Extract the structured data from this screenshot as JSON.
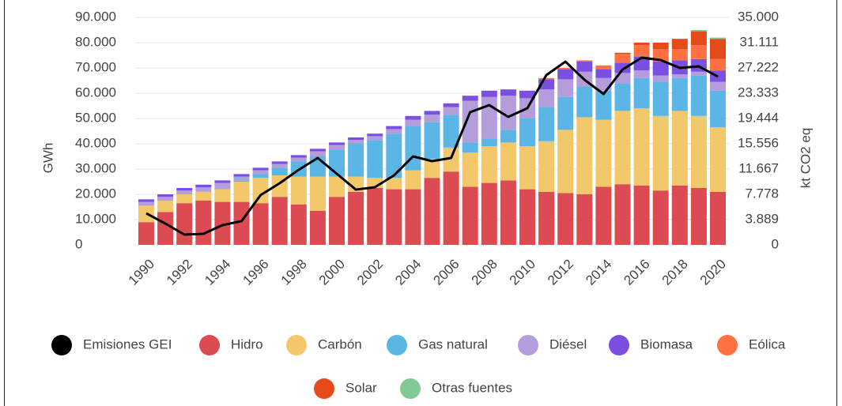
{
  "chart_data": {
    "type": "bar",
    "categories": [
      "1990",
      null,
      "1992",
      null,
      "1994",
      null,
      "1996",
      null,
      "1998",
      null,
      "2000",
      null,
      "2002",
      null,
      "2004",
      null,
      "2006",
      null,
      "2008",
      null,
      "2010",
      null,
      "2012",
      null,
      "2014",
      null,
      "2016",
      null,
      "2018",
      null,
      "2020"
    ],
    "ylabel": "GWh",
    "y2label": "kt CO2 eq",
    "ylim": [
      0,
      90000
    ],
    "yticks": [
      0,
      {
        "value": 10000,
        "label": "10.000"
      },
      {
        "value": 20000,
        "label": "20.000"
      },
      {
        "value": 30000,
        "label": "30.000"
      },
      {
        "value": 40000,
        "label": "40.000"
      },
      {
        "value": 50000,
        "label": "50.000"
      },
      {
        "value": 60000,
        "label": "60.000"
      },
      {
        "value": 70000,
        "label": "70.000"
      },
      {
        "value": 80000,
        "label": "80.000"
      },
      {
        "value": 90000,
        "label": "90.000"
      }
    ],
    "y2lim": [
      0,
      35000
    ],
    "y2ticks": [
      0,
      {
        "value": 3889,
        "label": "3.889"
      },
      {
        "value": 7778,
        "label": "7.778"
      },
      {
        "value": 11667,
        "label": "11.667"
      },
      {
        "value": 15556,
        "label": "15.556"
      },
      {
        "value": 19444,
        "label": "19.444"
      },
      {
        "value": 23333,
        "label": "23.333"
      },
      {
        "value": 27222,
        "label": "27.222"
      },
      {
        "value": 31111,
        "label": "31.111"
      },
      {
        "value": 35000,
        "label": "35.000"
      }
    ],
    "grid": true,
    "stacked": true,
    "legend": "bottom",
    "series": [
      {
        "name": "Emisiones GEI",
        "color": "#000000",
        "type": "line",
        "axis": "y2",
        "values": [
          4860,
          3280,
          1580,
          1700,
          3040,
          3650,
          7660,
          9480,
          11550,
          13370,
          10940,
          8500,
          8870,
          10690,
          13610,
          12880,
          13370,
          20420,
          21500,
          19690,
          21020,
          26130,
          28190,
          25400,
          23210,
          26980,
          28800,
          28440,
          27220,
          27460,
          25890
        ]
      },
      {
        "name": "Hidro",
        "color": "#dc4b52",
        "values": [
          9000,
          13000,
          16500,
          17500,
          17000,
          17000,
          16500,
          19000,
          16000,
          13500,
          19000,
          21000,
          22500,
          22000,
          22000,
          26500,
          29000,
          23000,
          24500,
          25500,
          22000,
          21000,
          20500,
          20000,
          23000,
          24000,
          23500,
          21500,
          23500,
          22500,
          21000
        ]
      },
      {
        "name": "Carbón",
        "color": "#f2c86a",
        "values": [
          6500,
          4500,
          3500,
          3500,
          5000,
          8000,
          10000,
          8500,
          11000,
          13500,
          8000,
          6000,
          4000,
          4500,
          7500,
          7500,
          9500,
          13500,
          14500,
          15000,
          17000,
          20000,
          25000,
          30500,
          26500,
          29000,
          30500,
          29500,
          29500,
          28500,
          25500
        ]
      },
      {
        "name": "Gas natural",
        "color": "#5bb5e5",
        "values": [
          0,
          0,
          0,
          0,
          0,
          500,
          1500,
          3000,
          6000,
          8000,
          10500,
          13000,
          15000,
          17500,
          17500,
          14500,
          13000,
          4000,
          3000,
          5000,
          11000,
          13500,
          13000,
          12000,
          11500,
          11000,
          12000,
          13500,
          13000,
          16000,
          14500
        ]
      },
      {
        "name": "Diésel",
        "color": "#b39ddb",
        "values": [
          1500,
          1500,
          1500,
          1800,
          2500,
          1500,
          1500,
          1500,
          1500,
          2000,
          2000,
          1500,
          1500,
          1800,
          2500,
          3000,
          3000,
          16500,
          16500,
          13500,
          8000,
          7000,
          7000,
          6000,
          5000,
          4000,
          3000,
          2500,
          1500,
          1500,
          3500
        ]
      },
      {
        "name": "Biomasa",
        "color": "#7b4fe0",
        "values": [
          1000,
          1000,
          1000,
          1000,
          1000,
          1000,
          1000,
          1000,
          1000,
          1000,
          1000,
          1000,
          1000,
          1200,
          1500,
          1500,
          1500,
          2000,
          2500,
          2500,
          3000,
          4000,
          4000,
          4000,
          3500,
          4000,
          5500,
          5500,
          5500,
          5000,
          4500
        ]
      },
      {
        "name": "Eólica",
        "color": "#ff7043",
        "values": [
          0,
          0,
          0,
          0,
          0,
          0,
          0,
          0,
          0,
          0,
          0,
          0,
          0,
          0,
          0,
          0,
          0,
          0,
          0,
          0,
          0,
          500,
          500,
          500,
          1500,
          3500,
          4500,
          5000,
          4500,
          5500,
          4500
        ]
      },
      {
        "name": "Solar",
        "color": "#e64a19",
        "values": [
          0,
          0,
          0,
          0,
          0,
          0,
          0,
          0,
          0,
          0,
          0,
          0,
          0,
          0,
          0,
          0,
          0,
          0,
          0,
          0,
          0,
          0,
          0,
          0,
          0,
          500,
          1000,
          2500,
          4000,
          5500,
          8000
        ]
      },
      {
        "name": "Otras fuentes",
        "color": "#81c995",
        "values": [
          0,
          0,
          0,
          0,
          0,
          0,
          0,
          0,
          0,
          0,
          0,
          0,
          0,
          0,
          0,
          0,
          0,
          0,
          0,
          0,
          0,
          0,
          0,
          0,
          0,
          0,
          0,
          0,
          0,
          500,
          500
        ]
      }
    ]
  }
}
